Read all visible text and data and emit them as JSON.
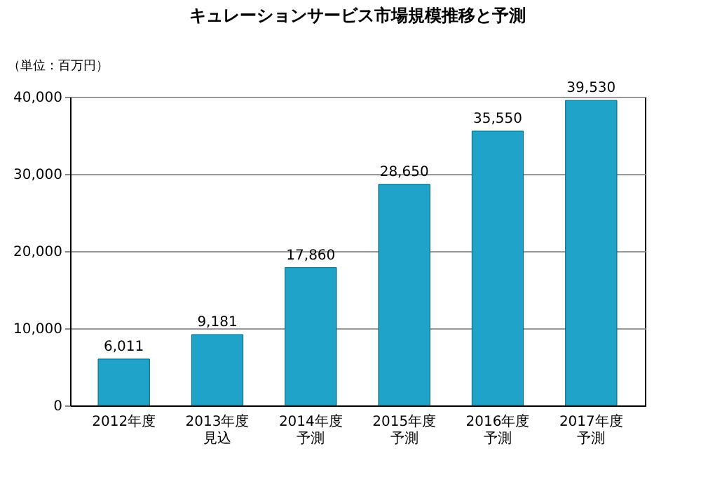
{
  "chart_data": {
    "type": "bar",
    "title": "キュレーションサービス市場規模推移と予測",
    "ylabel": "（単位：百万円）",
    "categories": [
      "2012年度",
      "2013年度見込",
      "2014年度予測",
      "2015年度予測",
      "2016年度予測",
      "2017年度予測"
    ],
    "values": [
      6011,
      9181,
      17860,
      28650,
      35550,
      39530
    ],
    "value_labels": [
      "6,011",
      "9,181",
      "17,860",
      "28,650",
      "35,550",
      "39,530"
    ],
    "color": "#1fa3c8",
    "ylim": [
      0,
      40000
    ],
    "yticks": [
      0,
      {
        "value": 10000,
        "label": "10,000"
      },
      {
        "value": 20000,
        "label": "20,000"
      },
      {
        "value": 30000,
        "label": "30,000"
      },
      {
        "value": 40000,
        "label": "40,000"
      }
    ],
    "grid": "y"
  }
}
